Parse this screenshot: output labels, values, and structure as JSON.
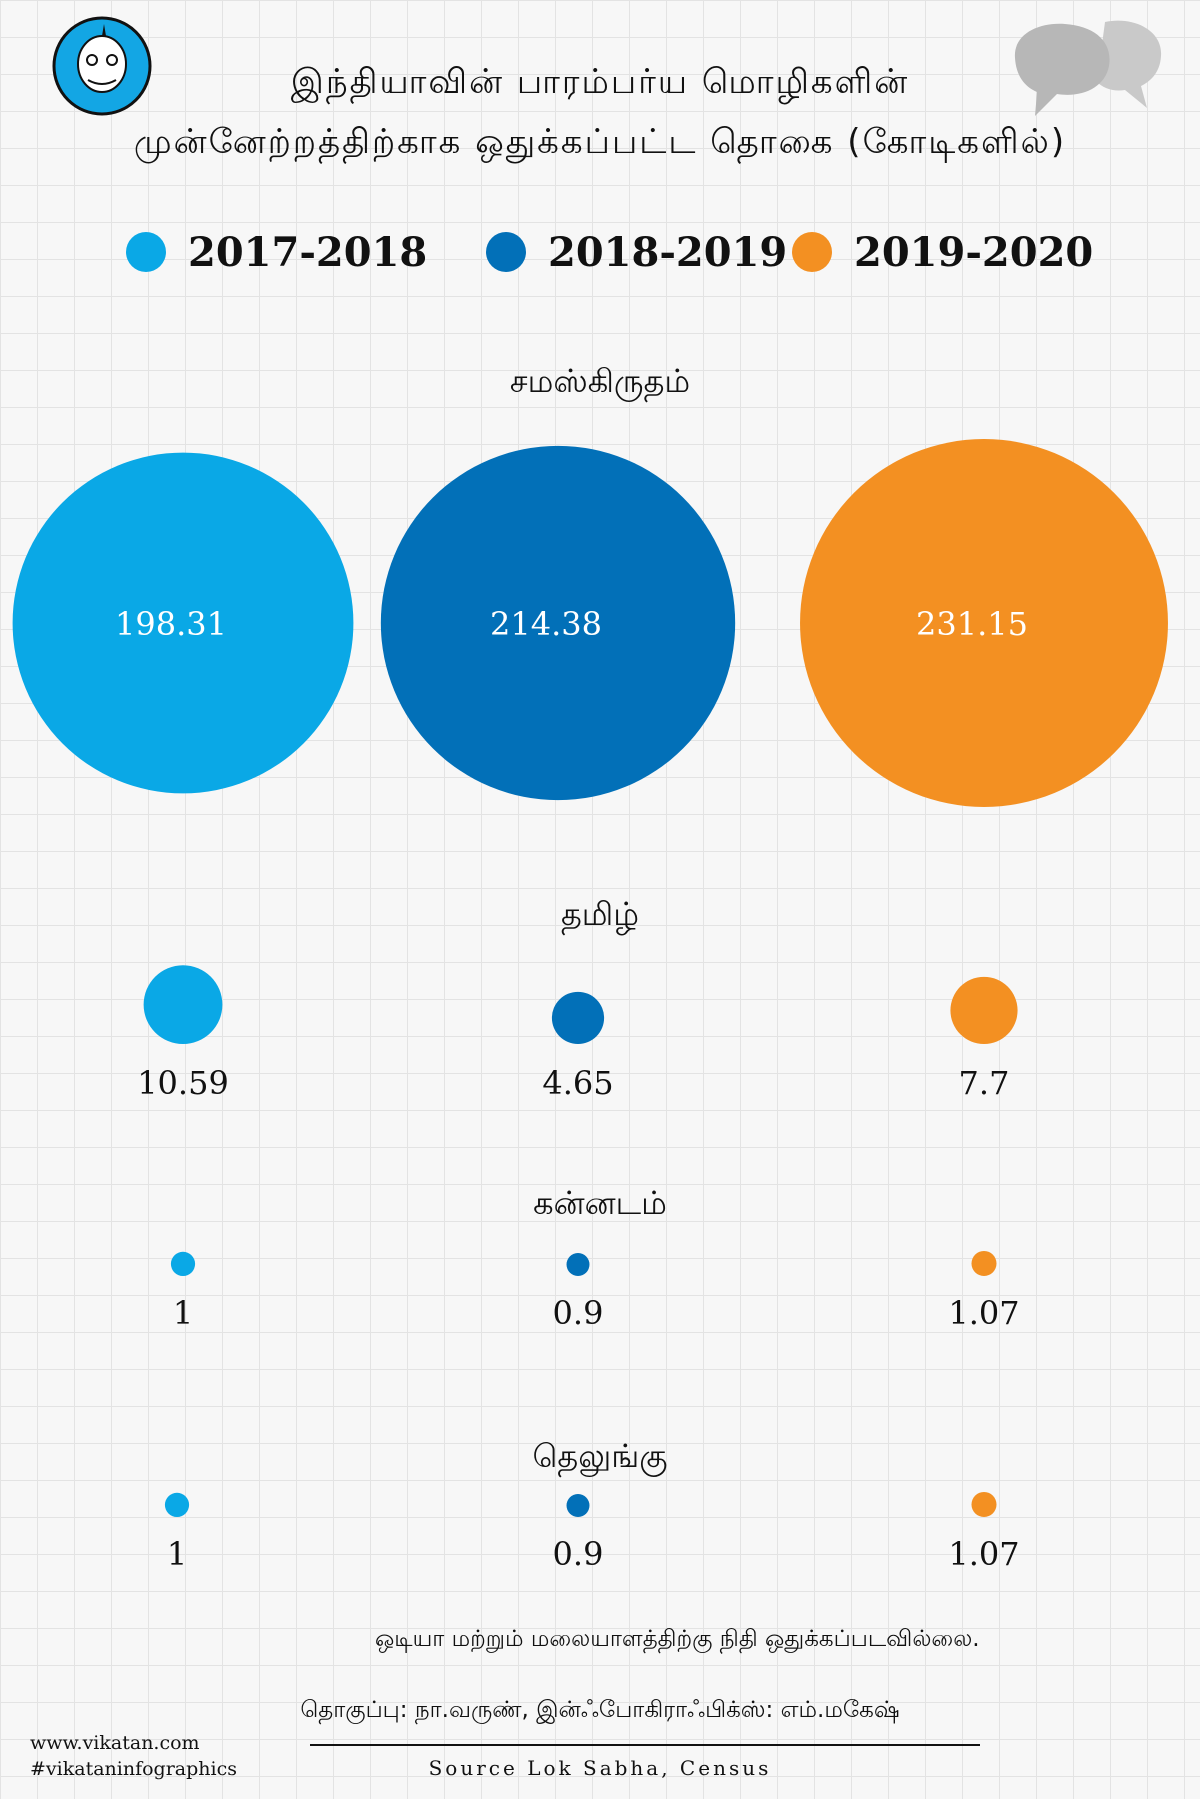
{
  "title": {
    "line1": "இந்தியாவின் பாரம்பர்ய மொழிகளின்",
    "line2": "முன்னேற்றத்திற்காக ஒதுக்கப்பட்ட தொகை (கோடிகளில்)"
  },
  "colors": {
    "2017-2018": "#0aa8e6",
    "2018-2019": "#0270b8",
    "2019-2020": "#f39022"
  },
  "chart_data": {
    "type": "bubble",
    "title": "இந்தியாவின் பாரம்பர்ய மொழிகளின் முன்னேற்றத்திற்காக ஒதுக்கப்பட்ட தொகை (கோடிகளில்)",
    "unit": "கோடிகளில்",
    "series": [
      "2017-2018",
      "2018-2019",
      "2019-2020"
    ],
    "groups": [
      {
        "language": "சமஸ்கிருதம்",
        "values": [
          198.31,
          214.38,
          231.15
        ]
      },
      {
        "language": "தமிழ்",
        "values": [
          10.59,
          4.65,
          7.7
        ]
      },
      {
        "language": "கன்னடம்",
        "values": [
          1,
          0.9,
          1.07
        ]
      },
      {
        "language": "தெலுங்கு",
        "values": [
          1,
          0.9,
          1.07
        ]
      }
    ],
    "legend": "top"
  },
  "note": "ஒடியா மற்றும் மலையாளத்திற்கு நிதி ஒதுக்கப்படவில்லை.",
  "credit": "தொகுப்பு: நா.வருண், இன்ஃபோகிராஃபிக்ஸ்: எம்.மகேஷ்",
  "source": "Source Lok Sabha, Census",
  "footer": {
    "site": "www.vikatan.com",
    "hashtag": "#vikataninfographics"
  }
}
